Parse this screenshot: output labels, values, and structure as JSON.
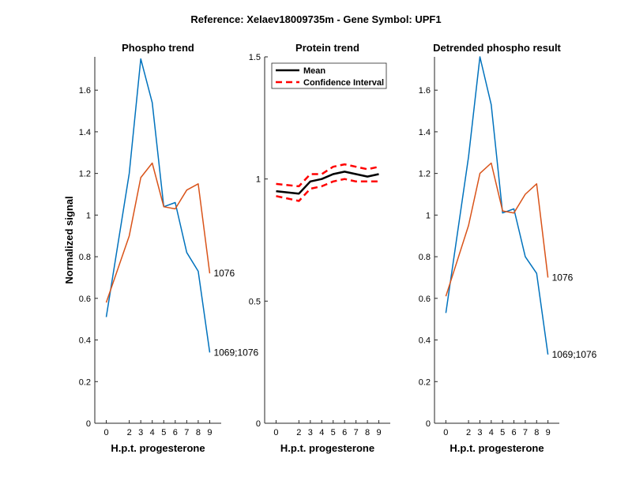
{
  "figure_title": "Reference:  Xelaev18009735m - Gene Symbol:  UPF1",
  "colors": {
    "series_1069_1076": "#0072BD",
    "series_1076": "#D95319",
    "mean": "#000000",
    "ci": "#FF0000"
  },
  "chart_data": [
    {
      "type": "line",
      "title": "Phospho trend",
      "xlabel": "H.p.t. progesterone",
      "ylabel": "Normalized signal",
      "x": [
        0,
        2,
        3,
        4,
        5,
        6,
        7,
        8,
        9
      ],
      "xlim": [
        -1,
        10
      ],
      "ylim": [
        0,
        1.76
      ],
      "yticks": [
        0,
        0.2,
        0.4,
        0.6,
        0.8,
        1,
        1.2,
        1.4,
        1.6
      ],
      "ytick_labels": [
        "0",
        "0.2",
        "0.4",
        "0.6",
        "0.8",
        "1",
        "1.2",
        "1.4",
        "1.6"
      ],
      "series": [
        {
          "name": "1069;1076",
          "values": [
            0.51,
            1.2,
            1.75,
            1.54,
            1.04,
            1.06,
            0.82,
            0.73,
            0.34
          ]
        },
        {
          "name": "1076",
          "values": [
            0.58,
            0.9,
            1.18,
            1.25,
            1.04,
            1.03,
            1.12,
            1.15,
            0.72
          ]
        }
      ]
    },
    {
      "type": "line",
      "title": "Protein trend",
      "xlabel": "H.p.t. progesterone",
      "ylabel": "",
      "x": [
        0,
        2,
        3,
        4,
        5,
        6,
        7,
        8,
        9
      ],
      "xlim": [
        -1,
        10
      ],
      "ylim": [
        0,
        1.5
      ],
      "yticks": [
        0,
        0.5,
        1,
        1.5
      ],
      "ytick_labels": [
        "0",
        "0.5",
        "1",
        "1.5"
      ],
      "legend": {
        "placement": "top-right",
        "entries": [
          "Mean",
          "Confidence Interval"
        ]
      },
      "series": [
        {
          "name": "Mean",
          "style": "solid",
          "values": [
            0.95,
            0.94,
            0.99,
            1.0,
            1.02,
            1.03,
            1.02,
            1.01,
            1.02
          ]
        },
        {
          "name": "Confidence Interval",
          "style": "dashed",
          "values": [
            0.98,
            0.97,
            1.02,
            1.02,
            1.05,
            1.06,
            1.05,
            1.04,
            1.05
          ]
        },
        {
          "name": "Confidence Interval",
          "style": "dashed",
          "values": [
            0.93,
            0.91,
            0.96,
            0.97,
            0.99,
            1.0,
            0.99,
            0.99,
            0.99
          ]
        }
      ]
    },
    {
      "type": "line",
      "title": "Detrended phospho result",
      "xlabel": "H.p.t. progesterone",
      "ylabel": "",
      "x": [
        0,
        2,
        3,
        4,
        5,
        6,
        7,
        8,
        9
      ],
      "xlim": [
        -1,
        10
      ],
      "ylim": [
        0,
        1.76
      ],
      "yticks": [
        0,
        0.2,
        0.4,
        0.6,
        0.8,
        1,
        1.2,
        1.4,
        1.6
      ],
      "ytick_labels": [
        "0",
        "0.2",
        "0.4",
        "0.6",
        "0.8",
        "1",
        "1.2",
        "1.4",
        "1.6"
      ],
      "series": [
        {
          "name": "1069;1076",
          "values": [
            0.53,
            1.28,
            1.76,
            1.53,
            1.01,
            1.03,
            0.8,
            0.72,
            0.33
          ]
        },
        {
          "name": "1076",
          "values": [
            0.61,
            0.95,
            1.2,
            1.25,
            1.02,
            1.01,
            1.1,
            1.15,
            0.7
          ]
        }
      ]
    }
  ]
}
